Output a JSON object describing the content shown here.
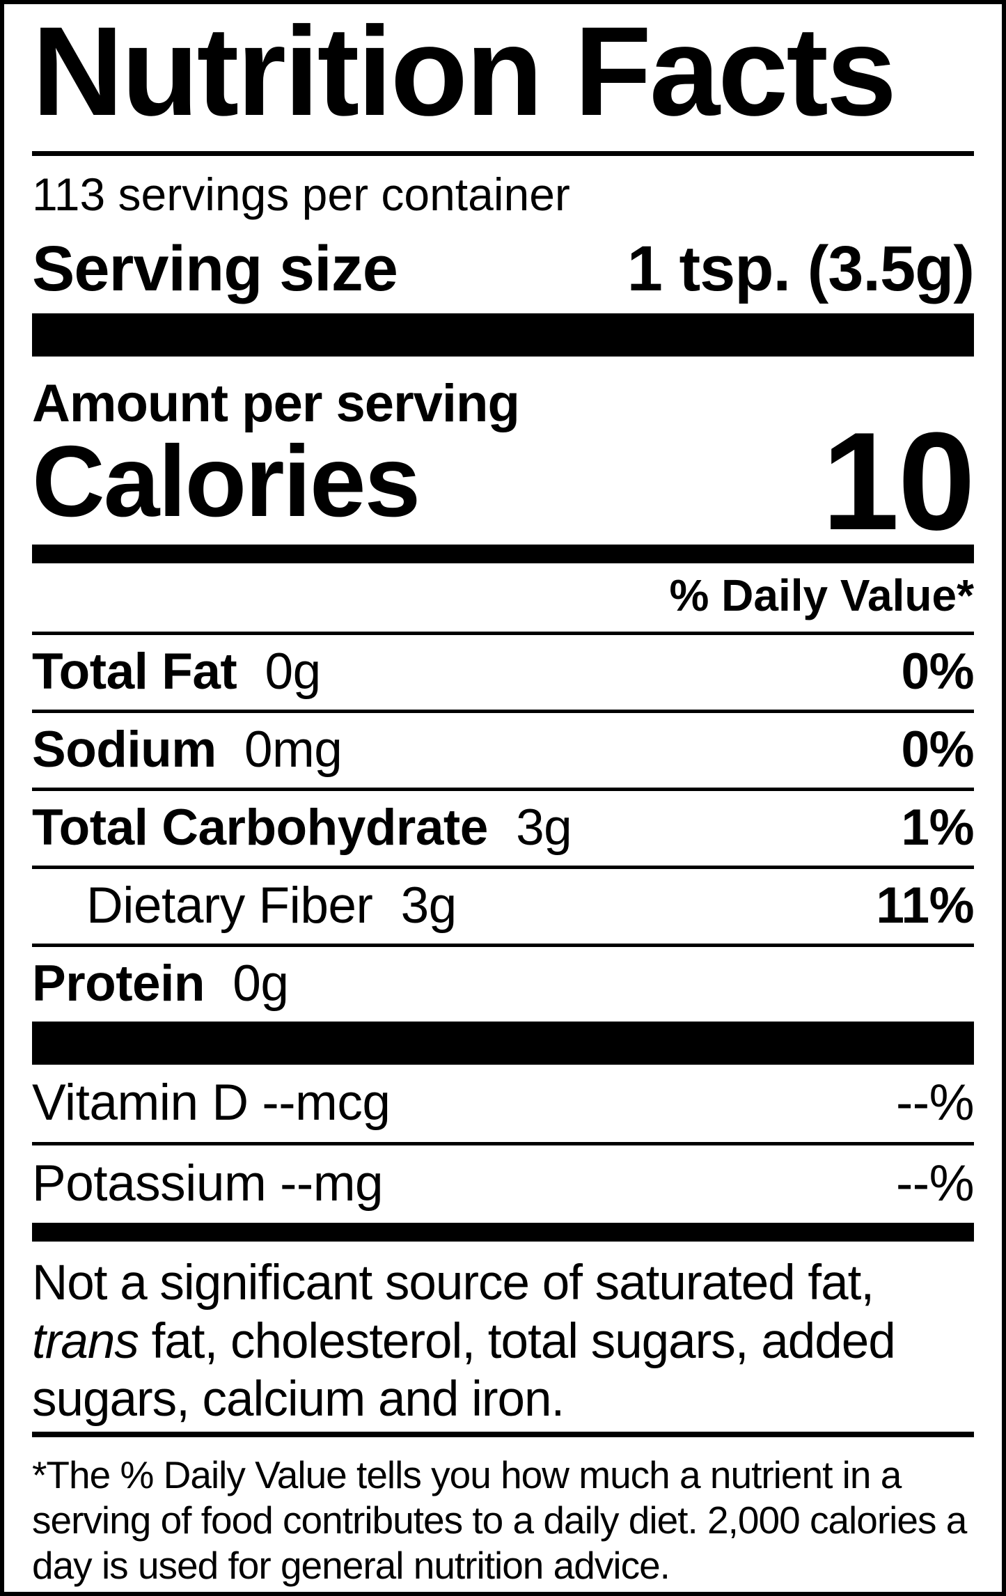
{
  "colors": {
    "ink": "#000000",
    "paper": "#ffffff"
  },
  "label": {
    "title": "Nutrition Facts",
    "servings_per_container": "113 servings per container",
    "serving_size": {
      "label": "Serving size",
      "value": "1 tsp. (3.5g)"
    },
    "amount_per_serving": "Amount per serving",
    "calories": {
      "label": "Calories",
      "value": "10"
    },
    "daily_value_header": "% Daily Value*",
    "nutrients": [
      {
        "name": "Total Fat",
        "amount": "0g",
        "daily_value": "0%"
      },
      {
        "name": "Sodium",
        "amount": "0mg",
        "daily_value": "0%"
      },
      {
        "name": "Total Carbohydrate",
        "amount": "3g",
        "daily_value": "1%"
      },
      {
        "name": "Dietary Fiber",
        "amount": "3g",
        "daily_value": "11%"
      },
      {
        "name": "Protein",
        "amount": "0g",
        "daily_value": ""
      }
    ],
    "micronutrients": [
      {
        "name": "Vitamin D",
        "amount": "--mcg",
        "daily_value": "--%"
      },
      {
        "name": "Potassium",
        "amount": "--mg",
        "daily_value": "--%"
      }
    ],
    "not_significant": {
      "pre": "Not a significant source of saturated fat, ",
      "italic": "trans",
      "post": " fat, cholesterol, total sugars, added sugars, calcium and iron."
    },
    "footnote": "*The % Daily Value tells you how much a nutrient in a serving of food contributes to a daily diet. 2,000 calories a day is used for general nutrition advice."
  }
}
